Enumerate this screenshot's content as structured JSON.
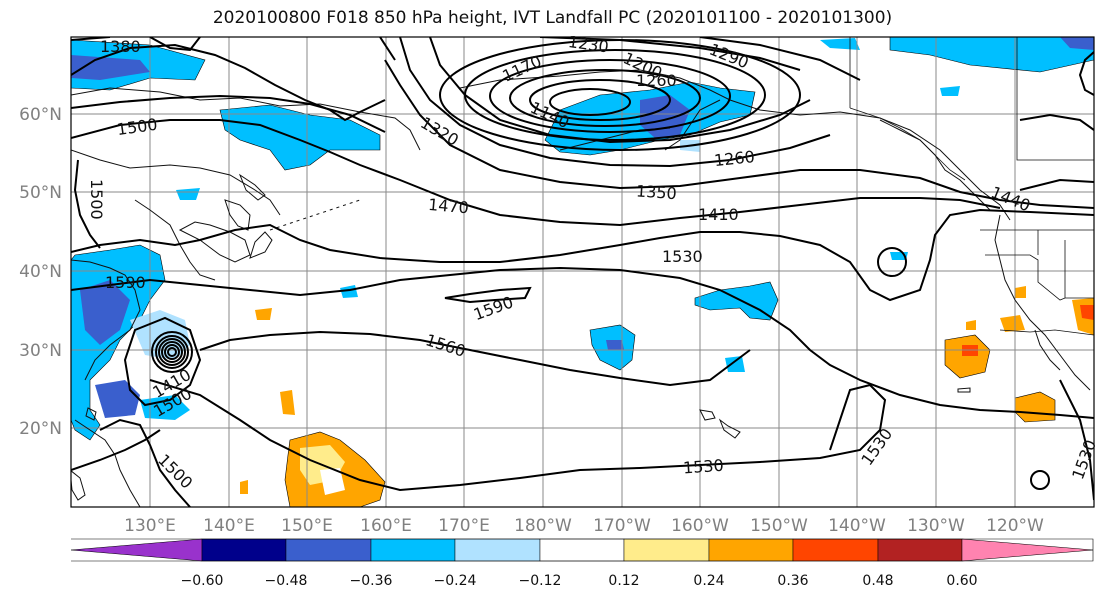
{
  "title": "2020100800 F018 850 hPa height, IVT Landfall PC (2020101100 - 2020101300)",
  "lon_labels": [
    "130°E",
    "140°E",
    "150°E",
    "160°E",
    "170°E",
    "180°W",
    "170°W",
    "160°W",
    "150°W",
    "140°W",
    "130°W",
    "120°W"
  ],
  "lat_labels": [
    "60°N",
    "50°N",
    "40°N",
    "30°N",
    "20°N"
  ],
  "contour_labels": [
    "1380",
    "1230",
    "1290",
    "1170",
    "1200",
    "1260",
    "1320",
    "1140",
    "1500",
    "1260",
    "1350",
    "1470",
    "1410",
    "1500",
    "1440",
    "1530",
    "1590",
    "1590",
    "1560",
    "1410",
    "1500",
    "1500",
    "1530",
    "1530",
    "1530"
  ],
  "colorbar": {
    "colors": [
      "#9932CC",
      "#00008B",
      "#3A5FCD",
      "#00BFFF",
      "#B0E2FF",
      "#FFFFFF",
      "#FFEC8B",
      "#FFA500",
      "#FF4500",
      "#B22222",
      "#FF83B0"
    ],
    "ticks": [
      "−0.60",
      "−0.48",
      "−0.36",
      "−0.24",
      "−0.12",
      "0.12",
      "0.24",
      "0.36",
      "0.48",
      "0.60"
    ]
  }
}
